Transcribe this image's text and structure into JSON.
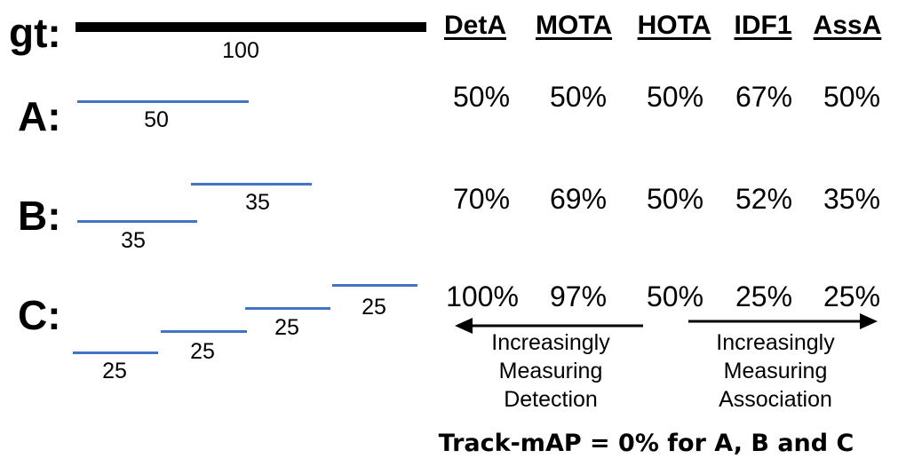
{
  "rows": {
    "gt": {
      "label": "gt:",
      "length": "100"
    },
    "A": {
      "label": "A:",
      "lengths": [
        "50"
      ]
    },
    "B": {
      "label": "B:",
      "lengths": [
        "35",
        "35"
      ]
    },
    "C": {
      "label": "C:",
      "lengths": [
        "25",
        "25",
        "25",
        "25"
      ]
    }
  },
  "metrics": {
    "headers": [
      "DetA",
      "MOTA",
      "HOTA",
      "IDF1",
      "AssA"
    ],
    "A": [
      "50%",
      "50%",
      "50%",
      "67%",
      "50%"
    ],
    "B": [
      "70%",
      "69%",
      "50%",
      "52%",
      "35%"
    ],
    "C": [
      "100%",
      "97%",
      "50%",
      "25%",
      "25%"
    ]
  },
  "captions": {
    "left": [
      "Increasingly",
      "Measuring",
      "Detection"
    ],
    "right": [
      "Increasingly",
      "Measuring",
      "Association"
    ]
  },
  "footer": "Track-mAP = 0% for A, B and C",
  "colors": {
    "prediction": "#4472c4",
    "ground_truth": "#000000"
  }
}
